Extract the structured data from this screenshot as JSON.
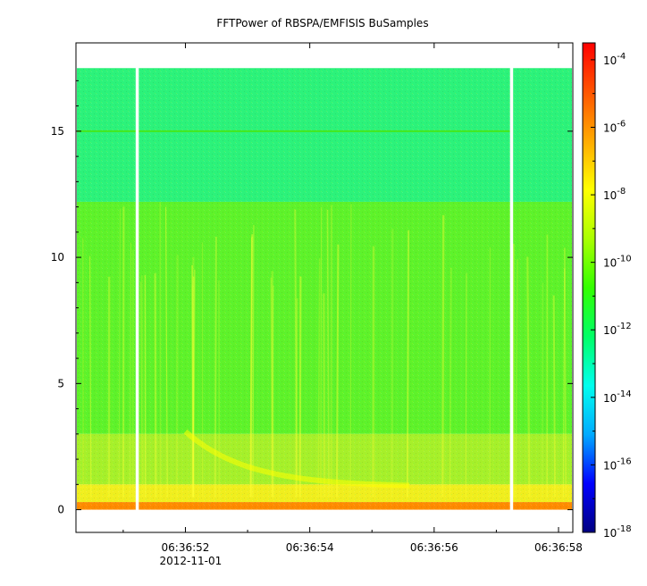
{
  "chart_data": {
    "type": "heatmap",
    "title": "FFTPower of RBSPA/EMFISIS  BuSamples",
    "xlabel": "",
    "ylabel": "",
    "x_tick_labels": [
      "06:36:52",
      "06:36:54",
      "06:36:56",
      "06:36:58"
    ],
    "x_date_label": "2012-11-01",
    "x_range_seconds": [
      50.24,
      58.23
    ],
    "x_major_ticks_seconds": [
      52,
      54,
      56,
      58
    ],
    "x_minor_ticks_seconds": [
      51,
      53,
      55,
      57
    ],
    "y_ticks": [
      0,
      5,
      10,
      15
    ],
    "ylim": [
      -0.9,
      18.5
    ],
    "data_top": 17.5,
    "data_gaps_seconds": [
      [
        51.2,
        51.25
      ],
      [
        57.22,
        57.27
      ]
    ],
    "horizontal_line_y": 15.0,
    "colorbar": {
      "scale": "log",
      "range_exp": [
        -18,
        -3.5
      ],
      "tick_exponents": [
        -4,
        -6,
        -8,
        -10,
        -12,
        -14,
        -16,
        -18
      ],
      "tick_labels": [
        "10-4",
        "10-6",
        "10-8",
        "10-10",
        "10-12",
        "10-14",
        "10-16",
        "10-18"
      ],
      "colors": [
        "#000080",
        "#0000ff",
        "#00aaff",
        "#00ffee",
        "#00ff66",
        "#33ff00",
        "#aaff00",
        "#ffff00",
        "#ffaa00",
        "#ff5500",
        "#ff0000"
      ]
    },
    "bands": [
      {
        "y_range": [
          12.2,
          17.5
        ],
        "exp": -11.6,
        "color": "#2cf27a"
      },
      {
        "y_range": [
          3.0,
          12.2
        ],
        "exp": -10.2,
        "color": "#5ef22a"
      },
      {
        "y_range": [
          1.0,
          3.0
        ],
        "exp": -9.4,
        "color": "#a6f02a"
      },
      {
        "y_range": [
          0.3,
          1.0
        ],
        "exp": -8.3,
        "color": "#f0ee1e"
      },
      {
        "y_range": [
          0.0,
          0.3
        ],
        "exp": -7.0,
        "color": "#ff8a00"
      }
    ]
  }
}
